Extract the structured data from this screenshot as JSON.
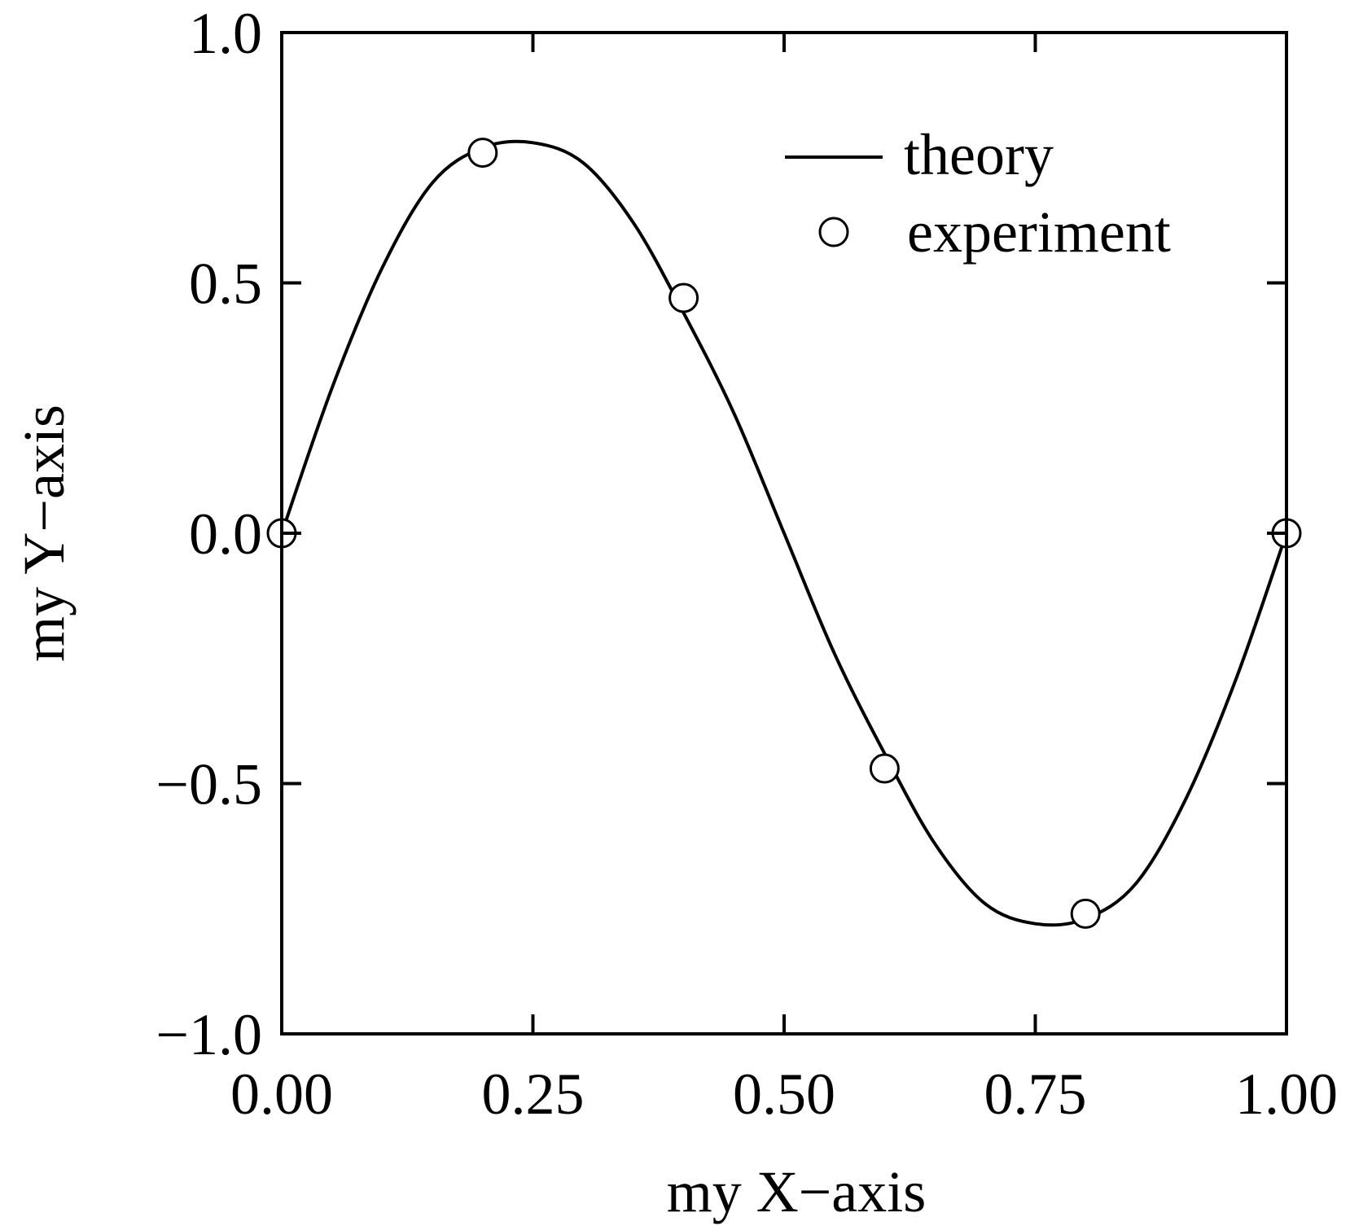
{
  "chart_data": {
    "type": "line",
    "xlabel": "my X−axis",
    "ylabel": "my Y−axis",
    "xlim": [
      0,
      1
    ],
    "ylim": [
      -1,
      1
    ],
    "x_ticks": [
      0,
      0.25,
      0.5,
      0.75,
      1
    ],
    "x_tick_labels": [
      "0.00",
      "0.25",
      "0.50",
      "0.75",
      "1.00"
    ],
    "y_ticks": [
      -1,
      -0.5,
      0,
      0.5,
      1
    ],
    "y_tick_labels": [
      "−1.0",
      "−0.5",
      "0.0",
      "0.5",
      "1.0"
    ],
    "grid": false,
    "legend": "top-right",
    "series": [
      {
        "name": "theory",
        "style": "line",
        "color": "#000000",
        "x": [
          0,
          0.05,
          0.1,
          0.15,
          0.2,
          0.25,
          0.3,
          0.35,
          0.4,
          0.45,
          0.5,
          0.55,
          0.6,
          0.65,
          0.7,
          0.75,
          0.8,
          0.85,
          0.9,
          0.95,
          1
        ],
        "y": [
          0,
          0.29,
          0.53,
          0.7,
          0.77,
          0.78,
          0.74,
          0.62,
          0.44,
          0.24,
          0,
          -0.24,
          -0.44,
          -0.62,
          -0.74,
          -0.78,
          -0.77,
          -0.7,
          -0.53,
          -0.29,
          0
        ]
      },
      {
        "name": "experiment",
        "style": "marker",
        "marker": "open-circle",
        "x": [
          0,
          0.2,
          0.4,
          0.6,
          0.8,
          1
        ],
        "y": [
          0,
          0.76,
          0.47,
          -0.47,
          -0.76,
          0
        ]
      }
    ]
  }
}
